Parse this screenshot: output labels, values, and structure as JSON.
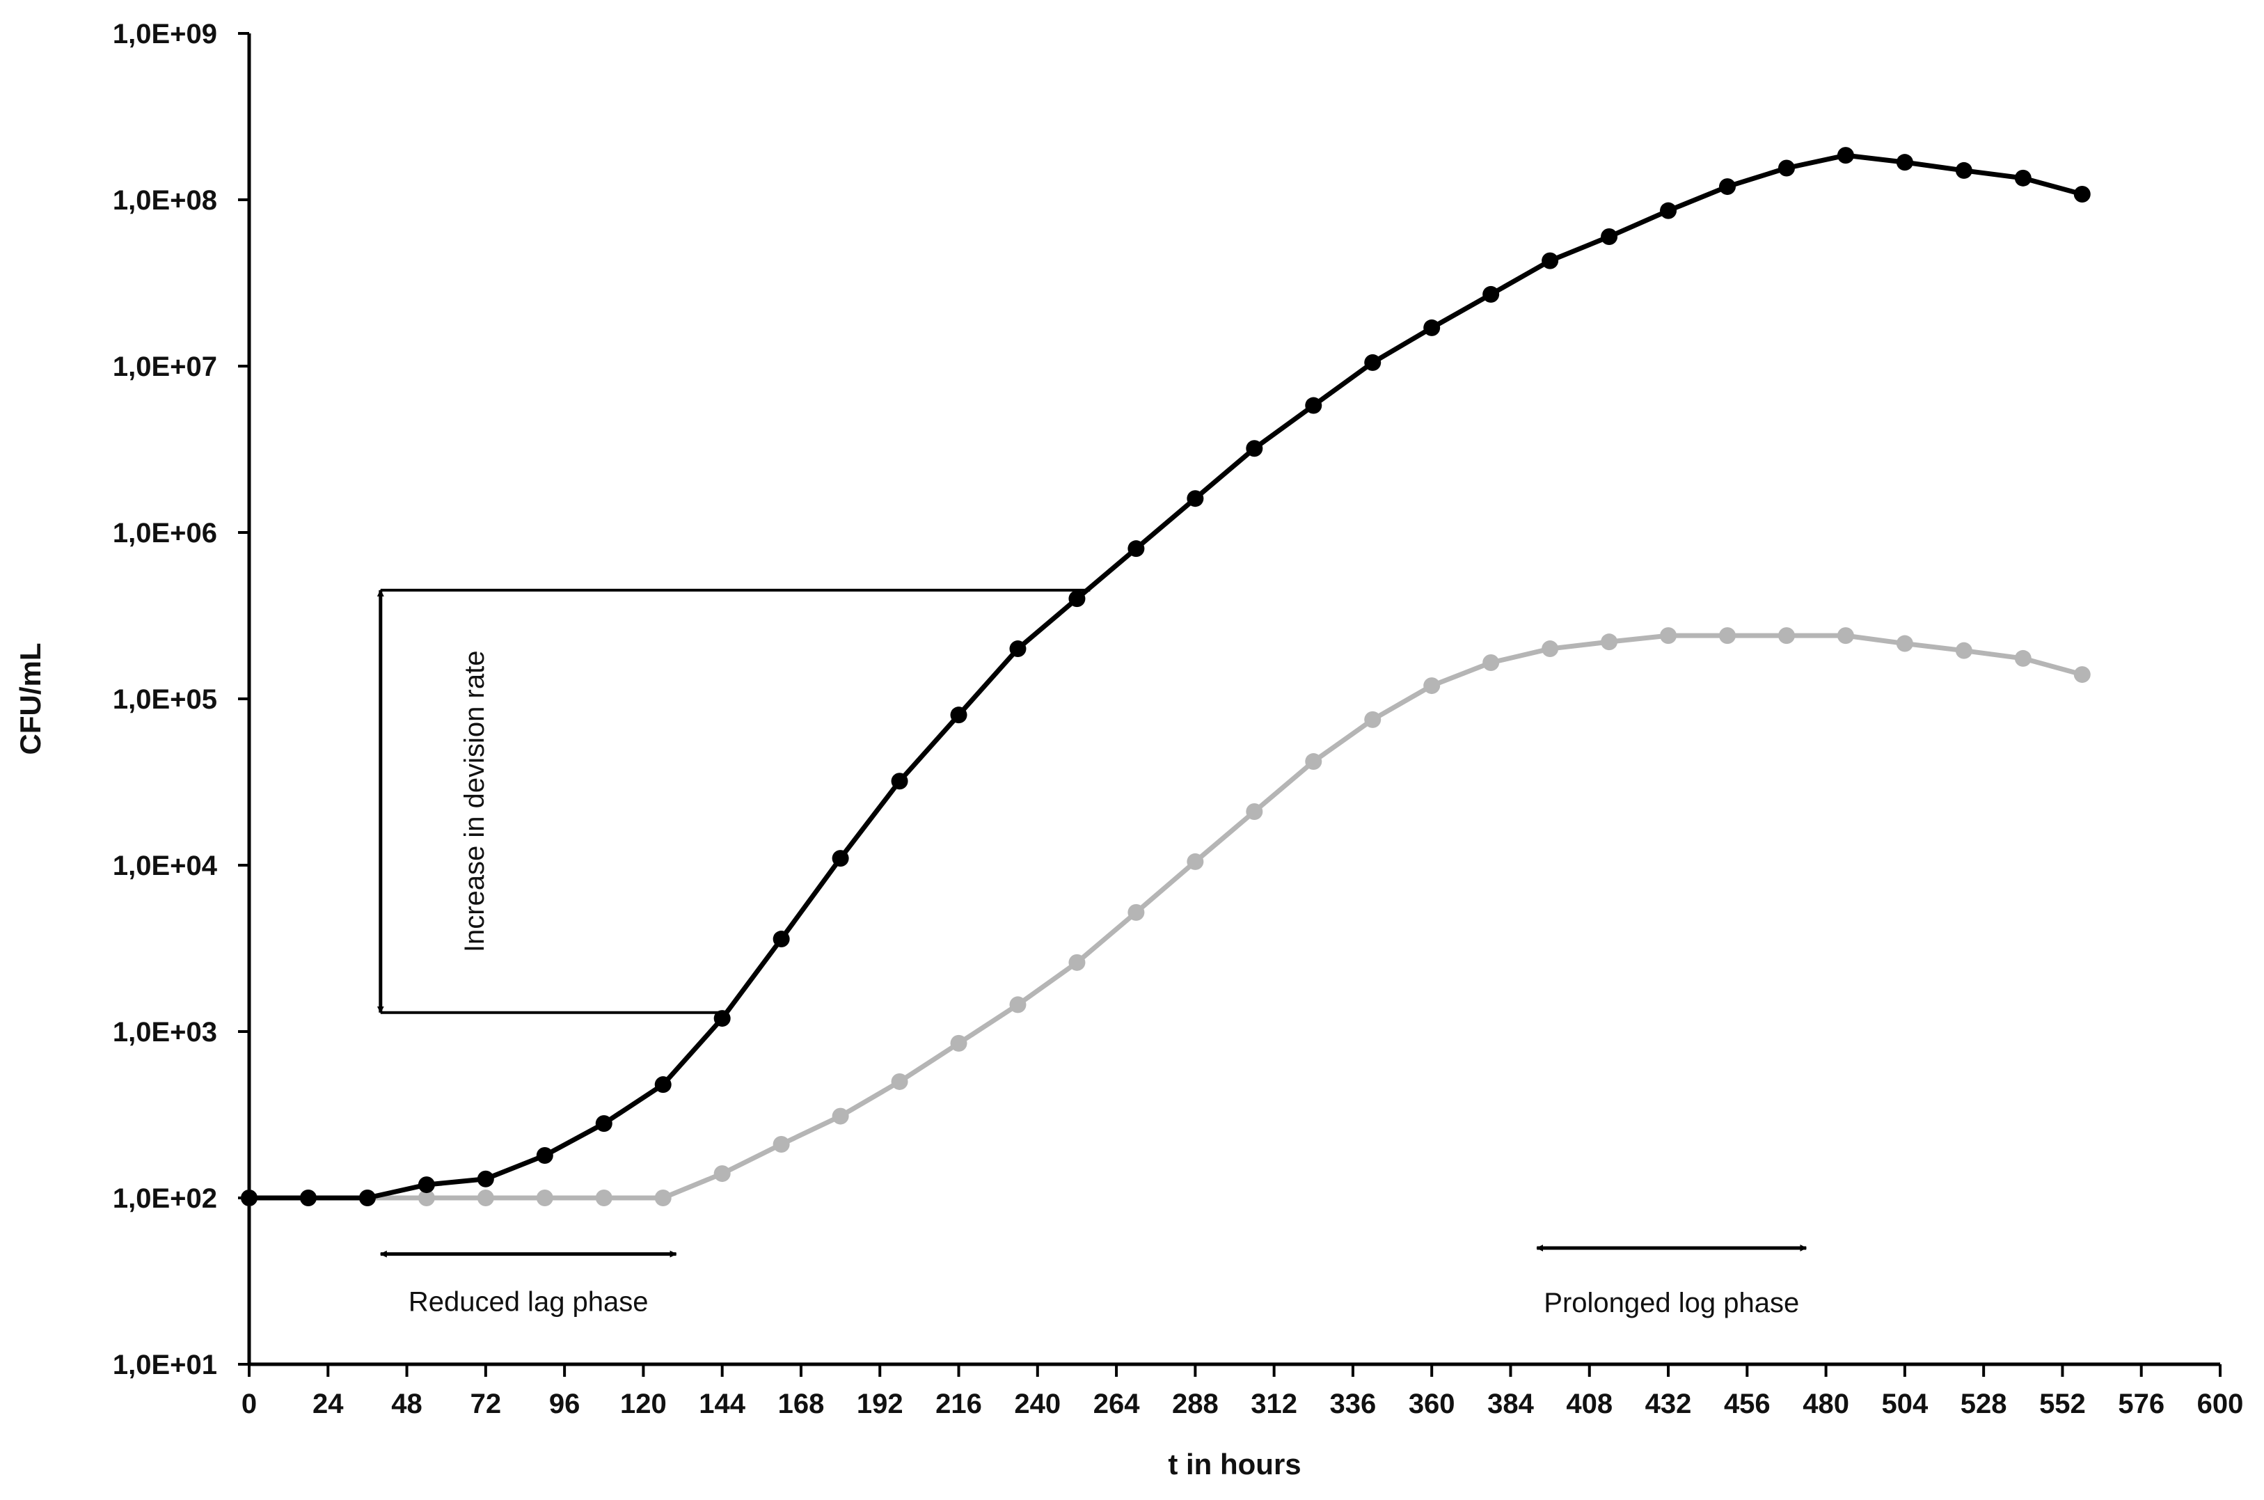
{
  "chart_data": {
    "type": "line",
    "xlabel": "t in hours",
    "ylabel": "CFU/mL",
    "xlim": [
      0,
      600
    ],
    "ylim": [
      10,
      1000000000
    ],
    "y_scale": "log",
    "x_ticks": [
      0,
      24,
      48,
      72,
      96,
      120,
      144,
      168,
      192,
      216,
      240,
      264,
      288,
      312,
      336,
      360,
      384,
      408,
      432,
      456,
      480,
      504,
      528,
      552,
      576,
      600
    ],
    "y_ticks": [
      10,
      100,
      1000,
      10000,
      100000,
      1000000,
      10000000,
      100000000,
      1000000000
    ],
    "y_tick_labels": [
      "1,0E+01",
      "1,0E+02",
      "1,0E+03",
      "1,0E+04",
      "1,0E+05",
      "1,0E+06",
      "1,0E+07",
      "1,0E+08",
      "1,0E+09"
    ],
    "grid": false,
    "x": [
      0,
      18,
      36,
      54,
      72,
      90,
      108,
      126,
      144,
      162,
      180,
      198,
      216,
      234,
      252,
      270,
      288,
      306,
      324,
      342,
      360,
      378,
      396,
      414,
      432,
      450,
      468,
      486,
      504,
      522,
      540,
      558
    ],
    "series": [
      {
        "color": "#000000",
        "values": [
          100,
          100,
          100,
          120,
          130,
          180,
          280,
          480,
          1200,
          3600,
          11000,
          32000,
          80000,
          200000,
          400000,
          800000,
          1600000,
          3200000,
          5800000,
          10500000,
          17000000,
          27000000,
          43000000,
          60000000,
          86000000,
          120000000,
          155000000,
          185000000,
          168000000,
          150000000,
          135000000,
          108000000
        ]
      },
      {
        "color": "#b5b5b5",
        "values": [
          100,
          100,
          100,
          100,
          100,
          100,
          100,
          100,
          140,
          210,
          310,
          500,
          850,
          1450,
          2600,
          5200,
          10500,
          21000,
          42000,
          75000,
          120000,
          165000,
          200000,
          220000,
          240000,
          240000,
          240000,
          240000,
          215000,
          195000,
          175000,
          140000
        ]
      }
    ],
    "annotations": [
      {
        "text": "Increase in devision rate",
        "from": {
          "x": 40,
          "y": 1300
        },
        "to": {
          "x": 40,
          "y": 450000
        }
      },
      {
        "text": "Reduced lag phase",
        "from": {
          "x": 40,
          "y": 46
        },
        "to": {
          "x": 130,
          "y": 46
        }
      },
      {
        "text": "Prolonged log phase",
        "from": {
          "x": 392,
          "y": 50
        },
        "to": {
          "x": 474,
          "y": 50
        }
      }
    ],
    "reference_lines": [
      {
        "y": 450000,
        "x_from": 40,
        "x_to": 256
      },
      {
        "y": 1300,
        "x_from": 40,
        "x_to": 144
      }
    ]
  }
}
